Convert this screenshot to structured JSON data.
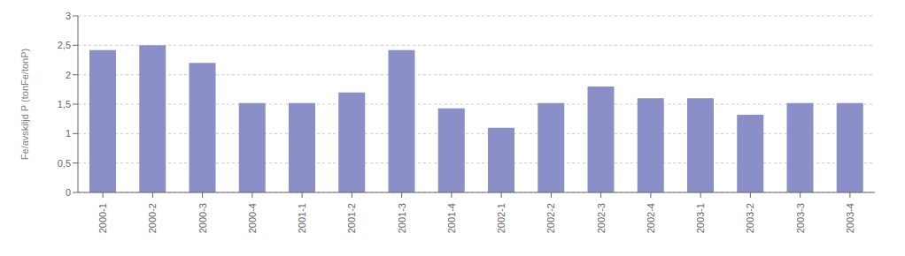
{
  "chart_data": {
    "type": "bar",
    "categories": [
      "2000-1",
      "2000-2",
      "2000-3",
      "2000-4",
      "2001-1",
      "2001-2",
      "2001-3",
      "2001-4",
      "2002-1",
      "2002-2",
      "2002-3",
      "2002-4",
      "2003-1",
      "2003-2",
      "2003-3",
      "2003-4"
    ],
    "values": [
      2.42,
      2.5,
      2.2,
      1.52,
      1.52,
      1.7,
      2.42,
      1.43,
      1.1,
      1.52,
      1.8,
      1.6,
      1.6,
      1.32,
      1.52,
      1.52
    ],
    "color": "#8B8FC8",
    "ylabel": "Fe/avskiljd P (tonFe/tonP)",
    "ylim": [
      0,
      3.0
    ],
    "yticks": [
      0,
      {
        "value": 0.5,
        "label": "0,5"
      },
      1,
      {
        "value": 1.5,
        "label": "1,5"
      },
      2,
      {
        "value": 2.5,
        "label": "2,5"
      },
      3
    ],
    "grid": true
  }
}
